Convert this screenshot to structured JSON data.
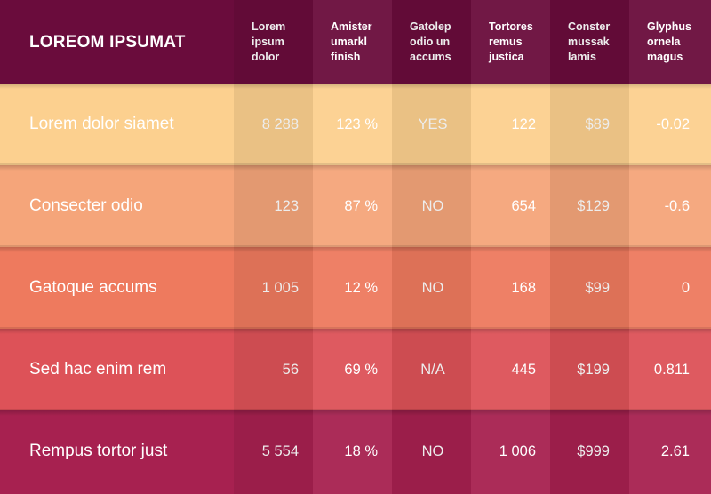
{
  "title": "LOREOM IPSUMAT",
  "columns": [
    "Lorem\nipsum\ndolor",
    "Amister\numarkl\nfinish",
    "Gatolep\nodio un\naccums",
    "Tortores\nremus\njustica",
    "Conster\nmussak\nlamis",
    "Glyphus\nornela\nmagus"
  ],
  "rows": [
    {
      "label": "Lorem dolor siamet",
      "color": "#fcd08f",
      "cells": [
        "8 288",
        "123 %",
        "YES",
        "122",
        "$89",
        "-0.02"
      ]
    },
    {
      "label": "Consecter odio",
      "color": "#f5a57a",
      "cells": [
        "123",
        "87 %",
        "NO",
        "654",
        "$129",
        "-0.6"
      ]
    },
    {
      "label": "Gatoque accums",
      "color": "#ee7a5e",
      "cells": [
        "1 005",
        "12 %",
        "NO",
        "168",
        "$99",
        "0"
      ]
    },
    {
      "label": "Sed hac enim rem",
      "color": "#dd5258",
      "cells": [
        "56",
        "69 %",
        "N/A",
        "445",
        "$199",
        "0.811"
      ]
    },
    {
      "label": "Rempus tortor just",
      "color": "#a72150",
      "cells": [
        "5 554",
        "18 %",
        "NO",
        "1 006",
        "$999",
        "2.61"
      ]
    }
  ],
  "colors": {
    "header": "#6a0c3c"
  }
}
